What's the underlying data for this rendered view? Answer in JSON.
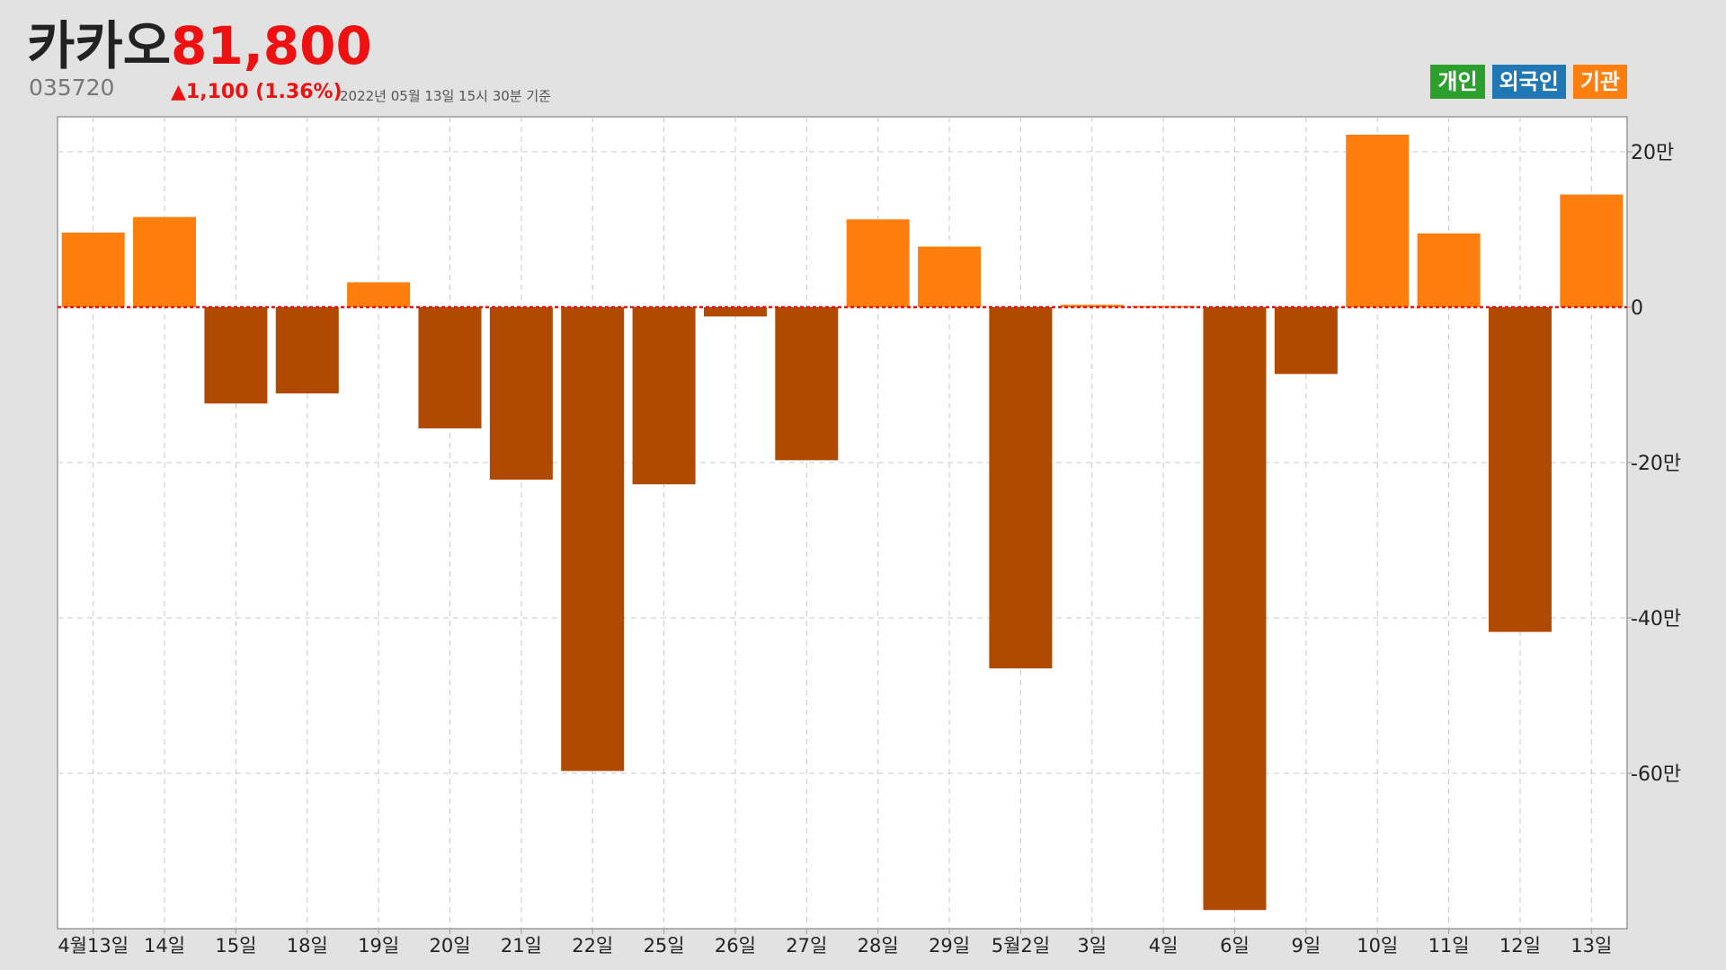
{
  "header": {
    "name": "카카오",
    "price": "81,800",
    "code": "035720",
    "change": "▲1,100 (1.36%)",
    "as_of": "2022년 05월 13일 15시 30분 기준"
  },
  "legend": [
    {
      "label": "개인",
      "color": "#2ca02c"
    },
    {
      "label": "외국인",
      "color": "#1f77b4"
    },
    {
      "label": "기관",
      "color": "#ff7f0e"
    }
  ],
  "colors": {
    "positive": "#ff7f0e",
    "negative": "#b04a00",
    "zero_line": "#ee1111",
    "grid": "#c8c8c8"
  },
  "chart_data": {
    "type": "bar",
    "series": [
      {
        "name": "기관"
      }
    ],
    "categories": [
      "4월13일",
      "14일",
      "15일",
      "18일",
      "19일",
      "20일",
      "21일",
      "22일",
      "25일",
      "26일",
      "27일",
      "28일",
      "29일",
      "5월2일",
      "3일",
      "4일",
      "6일",
      "9일",
      "10일",
      "11일",
      "12일",
      "13일"
    ],
    "values": [
      96000,
      116000,
      -124000,
      -111000,
      32000,
      -156000,
      -222000,
      -597000,
      -228000,
      -12000,
      -197000,
      113000,
      78000,
      -465000,
      3000,
      1500,
      -776000,
      -86000,
      222000,
      95000,
      -418000,
      145000
    ],
    "ylim": [
      -800000,
      240000
    ],
    "yticks": [
      200000,
      0,
      -200000,
      -400000,
      -600000
    ],
    "ytick_labels": [
      "20만",
      "0",
      "-20만",
      "-40만",
      "-60만"
    ],
    "grid": true,
    "legend_position": "top-right"
  }
}
